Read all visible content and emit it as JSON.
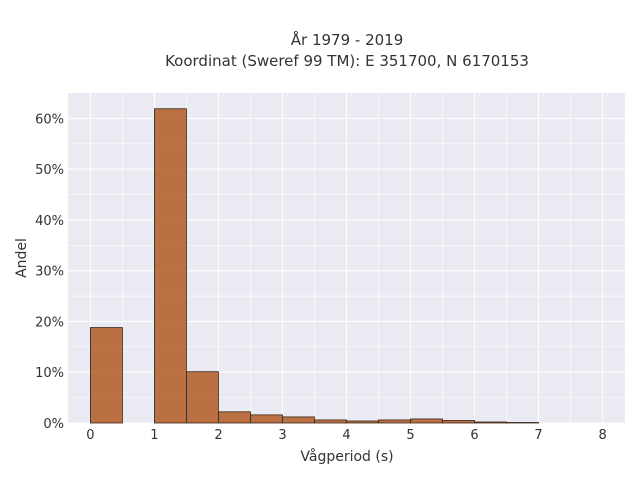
{
  "chart_data": {
    "type": "bar",
    "title": "År 1979 - 2019",
    "subtitle": "Koordinat (Sweref 99 TM): E 351700, N 6170153",
    "xlabel": "Vågperiod (s)",
    "ylabel": "Andel",
    "xlim": [
      -0.35,
      8.35
    ],
    "ylim": [
      0,
      0.65
    ],
    "x_ticks": [
      0,
      1,
      2,
      3,
      4,
      5,
      6,
      7,
      8
    ],
    "x_tick_labels": [
      "0",
      "1",
      "2",
      "3",
      "4",
      "5",
      "6",
      "7",
      "8"
    ],
    "y_ticks": [
      0,
      0.1,
      0.2,
      0.3,
      0.4,
      0.5,
      0.6
    ],
    "y_tick_labels": [
      "0%",
      "10%",
      "20%",
      "30%",
      "40%",
      "50%",
      "60%"
    ],
    "bin_width": 0.5,
    "bins": [
      {
        "start": 0.0,
        "value": 0.188
      },
      {
        "start": 0.5,
        "value": 0.0
      },
      {
        "start": 1.0,
        "value": 0.619
      },
      {
        "start": 1.5,
        "value": 0.101
      },
      {
        "start": 2.0,
        "value": 0.022
      },
      {
        "start": 2.5,
        "value": 0.016
      },
      {
        "start": 3.0,
        "value": 0.012
      },
      {
        "start": 3.5,
        "value": 0.006
      },
      {
        "start": 4.0,
        "value": 0.004
      },
      {
        "start": 4.5,
        "value": 0.006
      },
      {
        "start": 5.0,
        "value": 0.008
      },
      {
        "start": 5.5,
        "value": 0.005
      },
      {
        "start": 6.0,
        "value": 0.002
      },
      {
        "start": 6.5,
        "value": 0.001
      }
    ],
    "bar_color": "#b8693a",
    "bar_edge_color": "#3a2516",
    "plot_background": "#eaeaf2",
    "grid_color": "#ffffff",
    "grid": true
  }
}
